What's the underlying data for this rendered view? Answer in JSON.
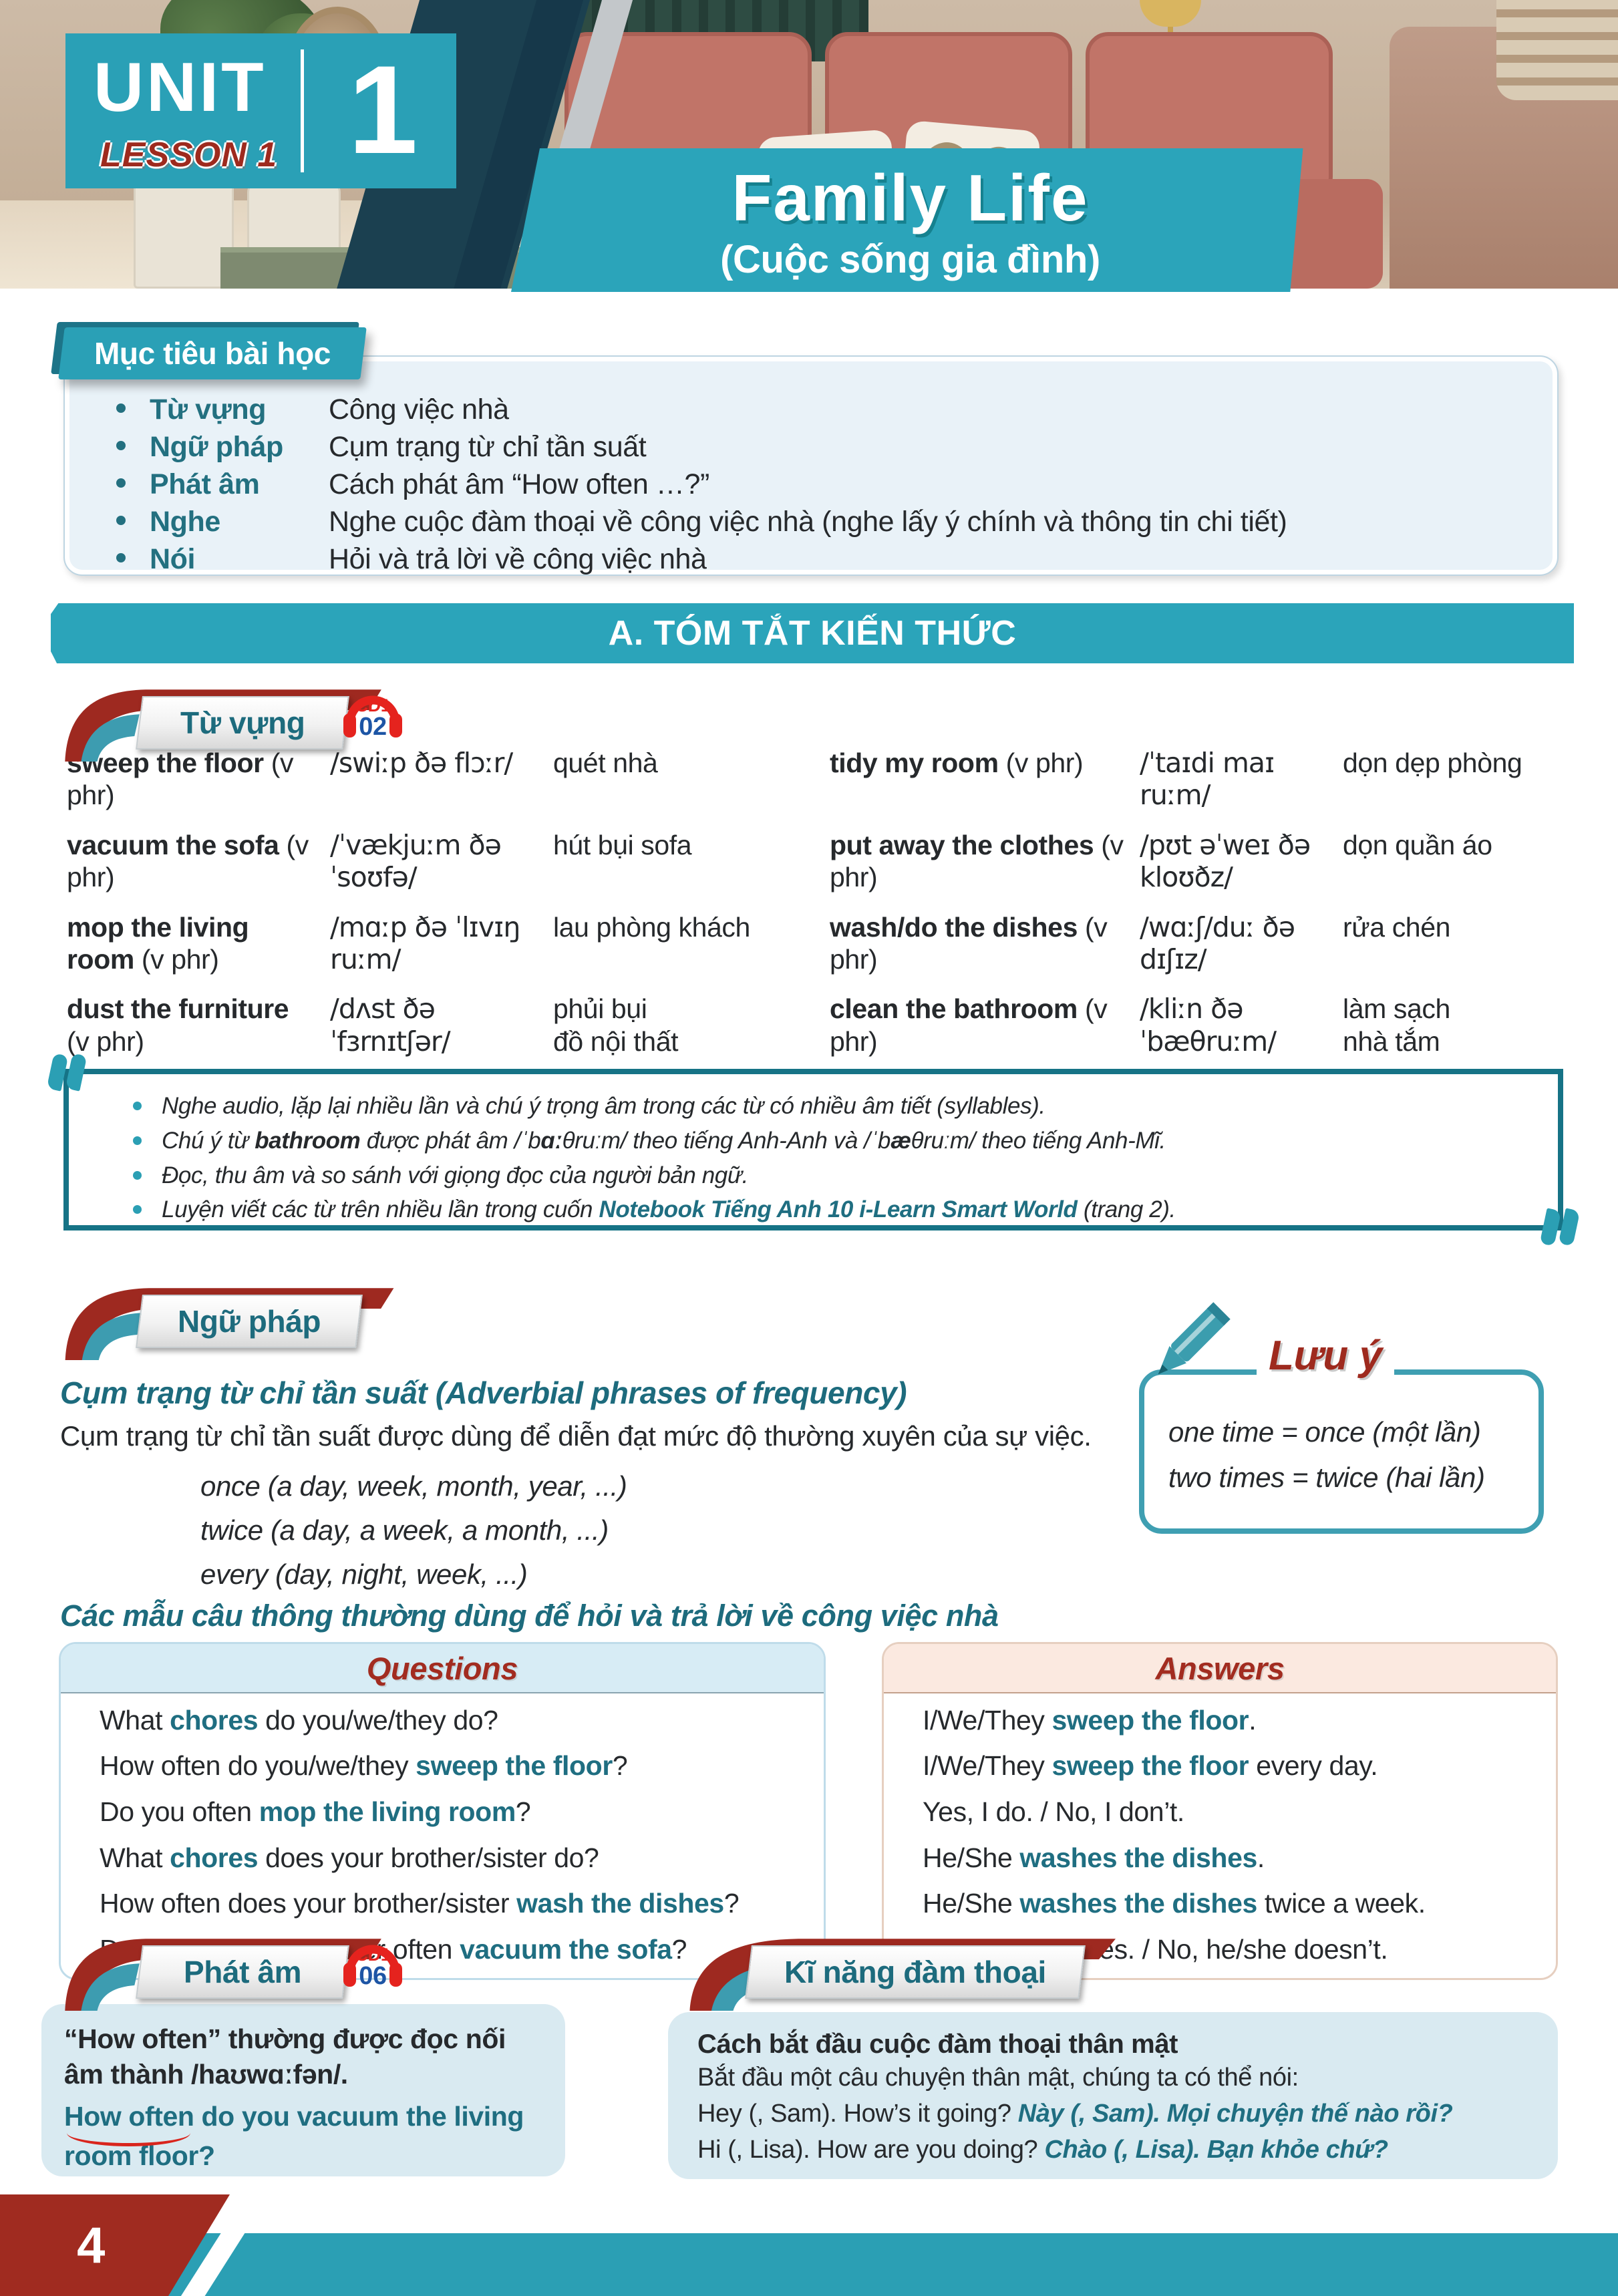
{
  "colors": {
    "teal_banner": "#2ba4ba",
    "teal_tab": "#2aa0b6",
    "teal_text": "#1d6b7d",
    "keyword_teal": "#1f6e81",
    "dark_red": "#a02b20",
    "cd_red": "#e5231e",
    "cd_blue": "#1d55a5",
    "navy": "#1b4050",
    "panel_blue": "#e9f2f8",
    "box_blue": "#d9eaf1",
    "answers_peach": "#fbe9e0",
    "liaison_red": "#d9251d"
  },
  "page": {
    "number": "4"
  },
  "header": {
    "unit_label": "UNIT",
    "lesson_label": "LESSON 1",
    "unit_number": "1",
    "title": "Family Life",
    "subtitle": "(Cuộc sống gia đình)"
  },
  "objectives": {
    "tab": "Mục tiêu bài học",
    "items": [
      {
        "label": "Từ vựng",
        "text": "Công việc nhà"
      },
      {
        "label": "Ngữ pháp",
        "text": "Cụm trạng từ chỉ tần suất"
      },
      {
        "label": "Phát âm",
        "text": "Cách phát âm “How often …?”"
      },
      {
        "label": "Nghe",
        "text": "Nghe cuộc đàm thoại về công việc nhà (nghe lấy ý chính và thông tin chi tiết)"
      },
      {
        "label": "Nói",
        "text": "Hỏi và trả lời về công việc nhà"
      }
    ]
  },
  "summary_banner": "A. TÓM TẮT KIẾN THỨC",
  "vocab": {
    "tab": "Từ vựng",
    "cd": {
      "line1": "CD1",
      "line2": "02"
    },
    "left": [
      {
        "term": "sweep the floor",
        "pos": "(v phr)",
        "ipa": "/swiːp ðə flɔːr/",
        "vi": "quét nhà"
      },
      {
        "term": "vacuum the sofa",
        "pos": "(v phr)",
        "ipa": "/ˈvækjuːm ðə ˈsoʊfə/",
        "vi": "hút bụi sofa"
      },
      {
        "term": "mop the living room",
        "pos": "(v phr)",
        "ipa": "/mɑːp ðə ˈlɪvɪŋ ruːm/",
        "vi": "lau phòng khách"
      },
      {
        "term": "dust the furniture",
        "pos": "(v phr)",
        "ipa": "/dʌst ðə ˈfɜrnɪtʃər/",
        "vi": "phủi bụi\nđồ nội thất"
      }
    ],
    "right": [
      {
        "term": "tidy my room",
        "pos": "(v phr)",
        "ipa": "/ˈtaɪdi maɪ ruːm/",
        "vi": "dọn dẹp phòng"
      },
      {
        "term": "put away the clothes",
        "pos": "(v phr)",
        "ipa": "/pʊt əˈweɪ ðə kloʊðz/",
        "vi": "dọn quần áo"
      },
      {
        "term": "wash/do the dishes",
        "pos": "(v phr)",
        "ipa": "/wɑːʃ/duː ðə dɪʃɪz/",
        "vi": "rửa chén"
      },
      {
        "term": "clean the bathroom",
        "pos": "(v phr)",
        "ipa": "/kliːn ðə ˈbæθruːm/",
        "vi": "làm sạch\nnhà tắm"
      }
    ]
  },
  "note": {
    "bullets": [
      [
        [
          "Nghe audio, lặp lại nhiều lần và chú ý trọng âm trong các từ có nhiều âm tiết (syllables).",
          "i"
        ]
      ],
      [
        [
          "Chú ý từ ",
          "i"
        ],
        [
          "bathroom",
          "bi"
        ],
        [
          " được phát âm /ˈb",
          "i"
        ],
        [
          "ɑː",
          "bi"
        ],
        [
          "θruːm/ theo tiếng Anh-Anh và /ˈb",
          "i"
        ],
        [
          "æ",
          "bi"
        ],
        [
          "θruːm/ theo tiếng Anh-Mĩ.",
          "i"
        ]
      ],
      [
        [
          "Đọc, thu âm và so sánh với giọng đọc của người bản ngữ.",
          "i"
        ]
      ],
      [
        [
          "Luyện viết các từ trên nhiều lần trong cuốn ",
          "i"
        ],
        [
          "Notebook Tiếng Anh 10 i-Learn Smart World",
          "ti"
        ],
        [
          " (trang 2).",
          "i"
        ]
      ]
    ]
  },
  "grammar": {
    "tab": "Ngữ pháp",
    "heading": "Cụm trạng từ chỉ tần suất (Adverbial phrases of frequency)",
    "body": "Cụm trạng từ chỉ tần suất được dùng để diễn đạt mức độ thường xuyên của sự việc.",
    "examples": [
      "once (a day, week, month, year, ...)",
      "twice (a day, a week, a month, ...)",
      "every (day, night, week, ...)"
    ]
  },
  "luu_y": {
    "title": "Lưu ý",
    "lines": [
      "one time = once (một lần)",
      "two times = twice (hai lần)"
    ]
  },
  "patterns_heading": "Các mẫu câu thông thường dùng để hỏi và trả lời về công việc nhà",
  "questions": {
    "header": "Questions",
    "rows": [
      [
        [
          "What ",
          "p"
        ],
        [
          "chores",
          "k"
        ],
        [
          " do you/we/they do?",
          "p"
        ]
      ],
      [
        [
          "How often do you/we/they ",
          "p"
        ],
        [
          "sweep the floor",
          "k"
        ],
        [
          "?",
          "p"
        ]
      ],
      [
        [
          "Do you often ",
          "p"
        ],
        [
          "mop the living room",
          "k"
        ],
        [
          "?",
          "p"
        ]
      ],
      [
        [
          "What ",
          "p"
        ],
        [
          "chores",
          "k"
        ],
        [
          " does your brother/sister do?",
          "p"
        ]
      ],
      [
        [
          "How often does your brother/sister ",
          "p"
        ],
        [
          "wash the dishes",
          "k"
        ],
        [
          "?",
          "p"
        ]
      ],
      [
        [
          "Does your brother/sister often ",
          "p"
        ],
        [
          "vacuum the sofa",
          "k"
        ],
        [
          "?",
          "p"
        ]
      ]
    ]
  },
  "answers": {
    "header": "Answers",
    "rows": [
      [
        [
          "I/We/They ",
          "p"
        ],
        [
          "sweep the floor",
          "k"
        ],
        [
          ".",
          "p"
        ]
      ],
      [
        [
          "I/We/They ",
          "p"
        ],
        [
          "sweep the floor",
          "k"
        ],
        [
          " every day.",
          "p"
        ]
      ],
      [
        [
          "Yes, I do.  /  No, I don’t.",
          "p"
        ]
      ],
      [
        [
          "He/She ",
          "p"
        ],
        [
          "washes the dishes",
          "k"
        ],
        [
          ".",
          "p"
        ]
      ],
      [
        [
          "He/She ",
          "p"
        ],
        [
          "washes the dishes",
          "k"
        ],
        [
          " twice a week.",
          "p"
        ]
      ],
      [
        [
          "Yes, he/she does.  /  No, he/she doesn’t.",
          "p"
        ]
      ]
    ]
  },
  "pronunciation": {
    "tab": "Phát âm",
    "cd": {
      "line1": "CD1",
      "line2": "06"
    },
    "rule": "“How often” thường được đọc nối âm thành /haʊwɑːfən/.",
    "example_linked": "How often",
    "example_rest": " do you vacuum the living room floor?"
  },
  "conversation": {
    "tab": "Kĩ năng đàm thoại",
    "title": "Cách bắt đầu cuộc đàm thoại thân mật",
    "intro": "Bắt đầu một câu chuyện thân mật, chúng ta có thể nói:",
    "rows": [
      [
        [
          "Hey (, Sam). How’s it going? ",
          "p"
        ],
        [
          "Này (, Sam). Mọi chuyện thế nào rồi?",
          "ti"
        ]
      ],
      [
        [
          "Hi (, Lisa). How are you doing? ",
          "p"
        ],
        [
          "Chào (, Lisa). Bạn khỏe chứ?",
          "ti"
        ]
      ]
    ]
  }
}
